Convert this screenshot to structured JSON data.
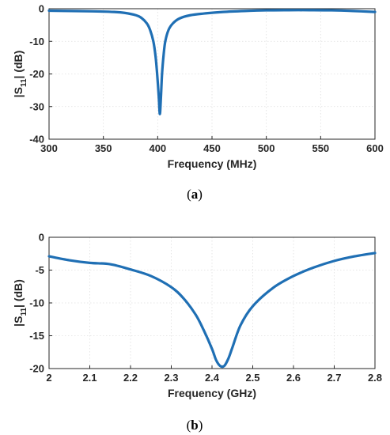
{
  "chart_data": [
    {
      "type": "line",
      "caption_letter": "a",
      "xlabel": "Frequency (MHz)",
      "ylabel_main": "|S",
      "ylabel_sub": "11",
      "ylabel_tail": "| (dB)",
      "xlim": [
        300,
        600
      ],
      "ylim": [
        -40,
        0
      ],
      "xticks": [
        300,
        350,
        400,
        450,
        500,
        550,
        600
      ],
      "yticks": [
        0,
        -10,
        -20,
        -30,
        -40
      ],
      "grid": true,
      "color": "#1f6fb4",
      "series": [
        {
          "x": [
            300,
            320,
            340,
            360,
            370,
            380,
            385,
            390,
            393,
            396,
            398,
            399.5,
            401,
            402,
            403,
            404,
            405.5,
            407,
            410,
            414,
            420,
            430,
            445,
            460,
            480,
            500,
            520,
            540,
            560,
            580,
            600
          ],
          "y": [
            -0.6,
            -0.7,
            -0.8,
            -1.0,
            -1.3,
            -2.0,
            -2.8,
            -4.5,
            -6.5,
            -10.0,
            -14.5,
            -20.0,
            -27.0,
            -32.3,
            -27.0,
            -20.0,
            -14.0,
            -10.0,
            -6.5,
            -4.5,
            -3.0,
            -2.0,
            -1.4,
            -1.0,
            -0.7,
            -0.5,
            -0.45,
            -0.45,
            -0.5,
            -0.7,
            -1.0
          ]
        }
      ]
    },
    {
      "type": "line",
      "caption_letter": "b",
      "xlabel": "Frequency (GHz)",
      "ylabel_main": "|S",
      "ylabel_sub": "11",
      "ylabel_tail": "| (dB)",
      "xlim": [
        2,
        2.8
      ],
      "ylim": [
        -20,
        0
      ],
      "xticks": [
        2,
        2.1,
        2.2,
        2.3,
        2.4,
        2.5,
        2.6,
        2.7,
        2.8
      ],
      "yticks": [
        0,
        -5,
        -10,
        -15,
        -20
      ],
      "grid": true,
      "color": "#1f6fb4",
      "series": [
        {
          "x": [
            2.0,
            2.05,
            2.1,
            2.15,
            2.2,
            2.25,
            2.3,
            2.33,
            2.36,
            2.38,
            2.4,
            2.41,
            2.42,
            2.43,
            2.44,
            2.45,
            2.47,
            2.5,
            2.55,
            2.6,
            2.65,
            2.7,
            2.75,
            2.8
          ],
          "y": [
            -2.9,
            -3.5,
            -3.9,
            -4.1,
            -4.9,
            -5.9,
            -7.6,
            -9.3,
            -11.8,
            -14.2,
            -17.0,
            -18.7,
            -19.6,
            -19.6,
            -18.5,
            -16.8,
            -13.4,
            -10.5,
            -7.7,
            -5.9,
            -4.6,
            -3.6,
            -2.9,
            -2.4
          ]
        }
      ]
    }
  ]
}
